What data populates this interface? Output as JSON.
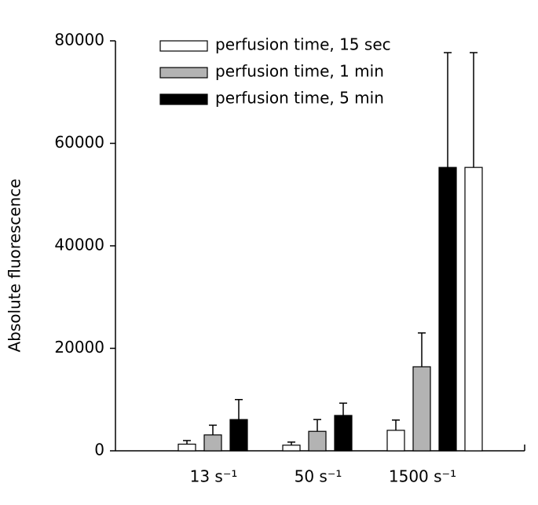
{
  "chart_data": {
    "type": "bar",
    "y_label": "Absolute fluorescence",
    "categories": [
      "13 s⁻¹",
      "50 s⁻¹",
      "1500 s⁻¹"
    ],
    "ylim": [
      0,
      80000
    ],
    "yticks": [
      0,
      20000,
      40000,
      60000,
      80000
    ],
    "series": [
      {
        "name": "perfusion time, 15 sec",
        "color": "#ffffff",
        "values": [
          1300,
          1100,
          4000
        ],
        "errors": [
          700,
          600,
          2000
        ]
      },
      {
        "name": "perfusion time, 1 min",
        "color": "#b3b3b3",
        "values": [
          3100,
          3800,
          16400
        ],
        "errors": [
          1900,
          2300,
          6600
        ]
      },
      {
        "name": "perfusion time, 5 min",
        "color": "#000000",
        "values": [
          6100,
          6900,
          55300
        ],
        "errors": [
          3900,
          2400,
          22400
        ]
      },
      {
        "color": "#ffffff",
        "values": [
          null,
          null,
          55300
        ],
        "errors": [
          null,
          null,
          22400
        ]
      }
    ]
  }
}
